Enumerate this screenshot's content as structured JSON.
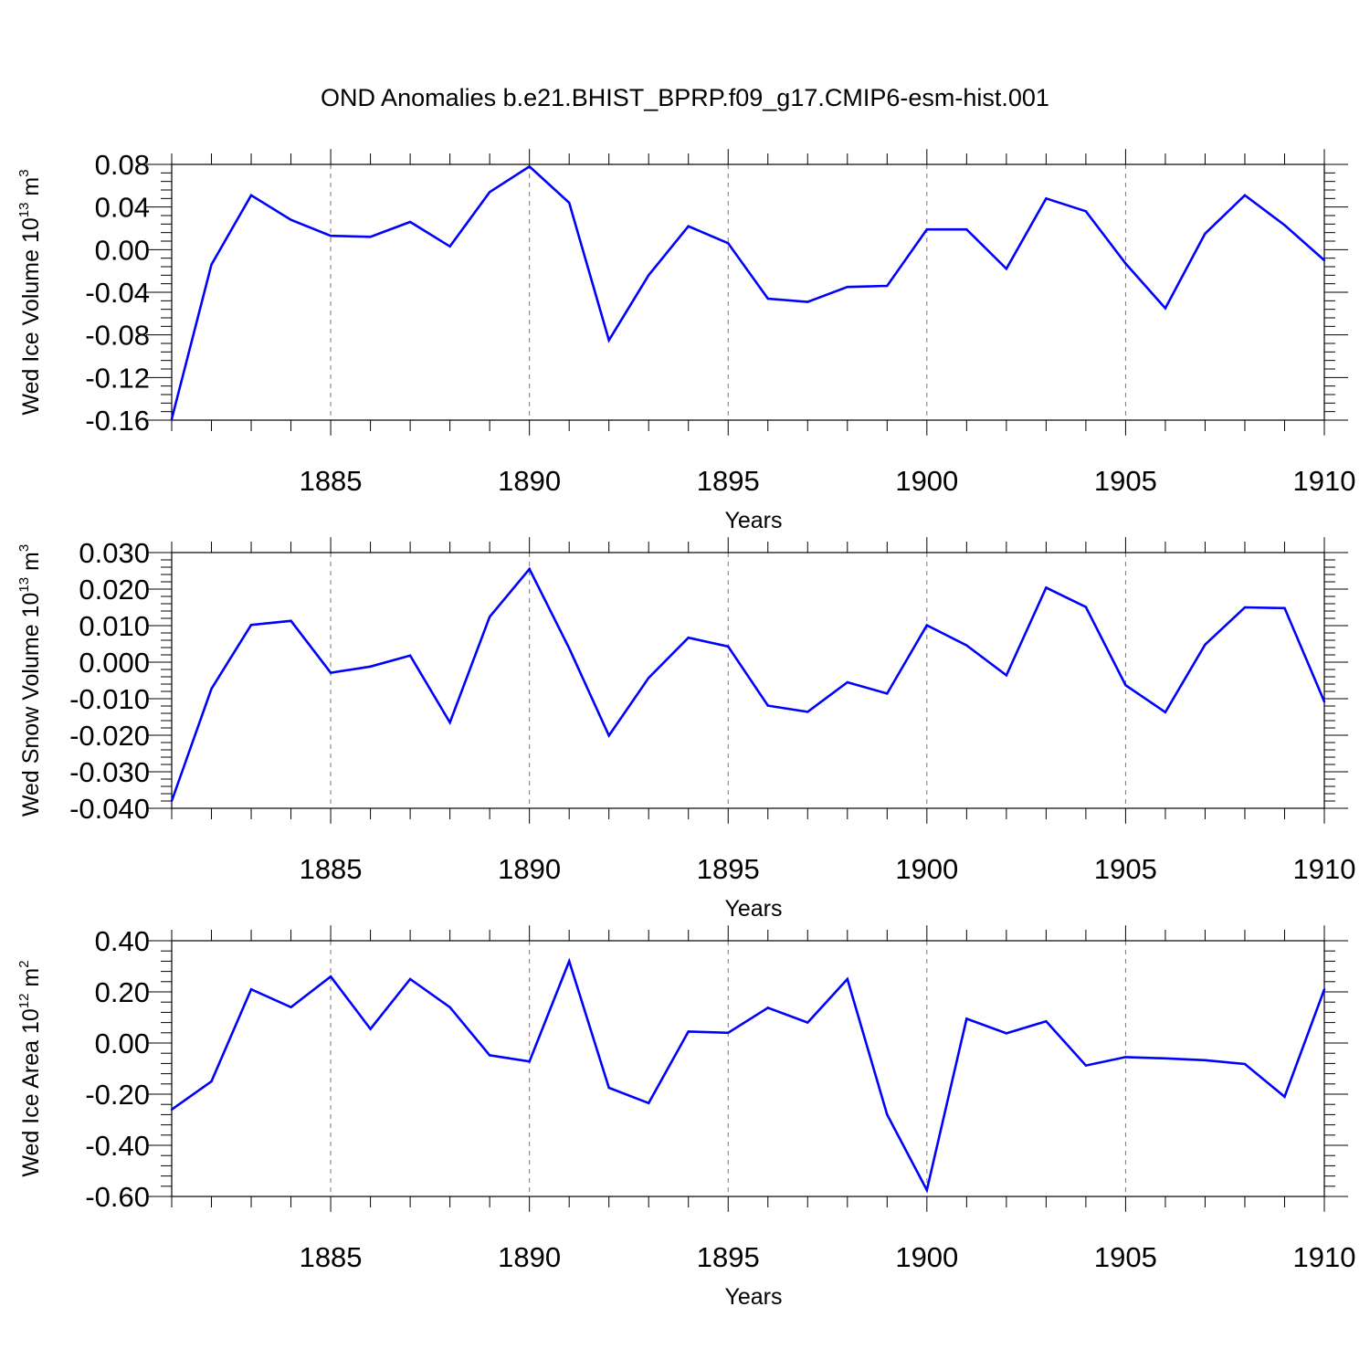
{
  "title": "OND Anomalies b.e21.BHIST_BPRP.f09_g17.CMIP6-esm-hist.001",
  "colors": {
    "line": "#0000ff",
    "axis": "#000000",
    "grid": "#777777"
  },
  "chart_data": [
    {
      "type": "line",
      "ylabel": {
        "text": "Wed Ice Volume 10",
        "exponent": "13",
        "unit": "m",
        "unit_exponent": "3"
      },
      "xlabel": "Years",
      "xlim": [
        1881,
        1910
      ],
      "ylim": [
        -0.16,
        0.08
      ],
      "xticks": [
        1885,
        1890,
        1895,
        1900,
        1905,
        1910
      ],
      "yticks": [
        -0.16,
        -0.12,
        -0.08,
        -0.04,
        0.0,
        0.04,
        0.08
      ],
      "ytick_labels": [
        "-0.16",
        "-0.12",
        "-0.08",
        "-0.04",
        "0.00",
        "0.04",
        "0.08"
      ],
      "grid": "vertical dashed at major x ticks",
      "x": [
        1881,
        1882,
        1883,
        1884,
        1885,
        1886,
        1887,
        1888,
        1889,
        1890,
        1891,
        1892,
        1893,
        1894,
        1895,
        1896,
        1897,
        1898,
        1899,
        1900,
        1901,
        1902,
        1903,
        1904,
        1905,
        1906,
        1907,
        1908,
        1909,
        1910
      ],
      "series": [
        {
          "values": [
            -0.159,
            -0.014,
            0.051,
            0.028,
            0.013,
            0.012,
            0.026,
            0.003,
            0.054,
            0.078,
            0.044,
            -0.085,
            -0.024,
            0.022,
            0.006,
            -0.046,
            -0.049,
            -0.035,
            -0.034,
            0.019,
            0.019,
            -0.018,
            0.048,
            0.036,
            -0.013,
            -0.055,
            0.015,
            0.051,
            0.023,
            -0.01
          ]
        }
      ]
    },
    {
      "type": "line",
      "ylabel": {
        "text": "Wed Snow Volume 10",
        "exponent": "13",
        "unit": "m",
        "unit_exponent": "3"
      },
      "xlabel": "Years",
      "xlim": [
        1881,
        1910
      ],
      "ylim": [
        -0.04,
        0.03
      ],
      "xticks": [
        1885,
        1890,
        1895,
        1900,
        1905,
        1910
      ],
      "yticks": [
        -0.04,
        -0.03,
        -0.02,
        -0.01,
        0.0,
        0.01,
        0.02,
        0.03
      ],
      "ytick_labels": [
        "-0.040",
        "-0.030",
        "-0.020",
        "-0.010",
        "0.000",
        "0.010",
        "0.020",
        "0.030"
      ],
      "grid": "vertical dashed at major x ticks",
      "x": [
        1881,
        1882,
        1883,
        1884,
        1885,
        1886,
        1887,
        1888,
        1889,
        1890,
        1891,
        1892,
        1893,
        1894,
        1895,
        1896,
        1897,
        1898,
        1899,
        1900,
        1901,
        1902,
        1903,
        1904,
        1905,
        1906,
        1907,
        1908,
        1909,
        1910
      ],
      "series": [
        {
          "values": [
            -0.038,
            -0.0073,
            0.0102,
            0.0113,
            -0.0029,
            -0.0012,
            0.0018,
            -0.0165,
            0.0124,
            0.0255,
            0.0038,
            -0.0201,
            -0.0043,
            0.0067,
            0.0043,
            -0.0119,
            -0.0136,
            -0.0055,
            -0.0086,
            0.0101,
            0.0046,
            -0.0036,
            0.0204,
            0.0151,
            -0.0063,
            -0.0137,
            0.0048,
            0.015,
            0.0148,
            -0.0108
          ]
        }
      ]
    },
    {
      "type": "line",
      "ylabel": {
        "text": "Wed Ice Area 10",
        "exponent": "12",
        "unit": "m",
        "unit_exponent": "2"
      },
      "xlabel": "Years",
      "xlim": [
        1881,
        1910
      ],
      "ylim": [
        -0.6,
        0.4
      ],
      "xticks": [
        1885,
        1890,
        1895,
        1900,
        1905,
        1910
      ],
      "yticks": [
        -0.6,
        -0.4,
        -0.2,
        0.0,
        0.2,
        0.4
      ],
      "ytick_labels": [
        "-0.60",
        "-0.40",
        "-0.20",
        "0.00",
        "0.20",
        "0.40"
      ],
      "grid": "vertical dashed at major x ticks",
      "x": [
        1881,
        1882,
        1883,
        1884,
        1885,
        1886,
        1887,
        1888,
        1889,
        1890,
        1891,
        1892,
        1893,
        1894,
        1895,
        1896,
        1897,
        1898,
        1899,
        1900,
        1901,
        1902,
        1903,
        1904,
        1905,
        1906,
        1907,
        1908,
        1909,
        1910
      ],
      "series": [
        {
          "values": [
            -0.26,
            -0.15,
            0.21,
            0.14,
            0.26,
            0.055,
            0.25,
            0.14,
            -0.048,
            -0.072,
            0.32,
            -0.175,
            -0.235,
            0.045,
            0.04,
            0.138,
            0.08,
            0.25,
            -0.28,
            -0.575,
            0.095,
            0.038,
            0.085,
            -0.088,
            -0.055,
            -0.06,
            -0.067,
            -0.082,
            -0.21,
            0.21
          ]
        }
      ]
    }
  ]
}
